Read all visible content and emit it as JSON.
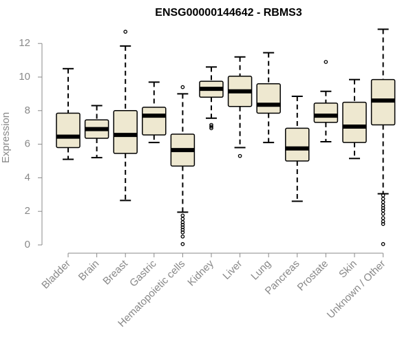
{
  "chart_data": {
    "type": "boxplot",
    "title": "ENSG00000144642 - RBMS3",
    "xlabel": "",
    "ylabel": "Expression",
    "ylim": [
      0,
      12.8
    ],
    "yticks": [
      0,
      2,
      4,
      6,
      8,
      10,
      12
    ],
    "colors": {
      "box_fill": "#EEE8D0",
      "box_stroke": "#000000",
      "axis": "#888888"
    },
    "categories": [
      "Bladder",
      "Brain",
      "Breast",
      "Gastric",
      "Hematopoietic cells",
      "Kidney",
      "Liver",
      "Lung",
      "Pancreas",
      "Prostate",
      "Skin",
      "Unknown / Other"
    ],
    "boxes": [
      {
        "name": "Bladder",
        "whisker_low": 5.1,
        "q1": 5.8,
        "median": 6.45,
        "q3": 7.85,
        "whisker_high": 10.5,
        "outliers": []
      },
      {
        "name": "Brain",
        "whisker_low": 5.2,
        "q1": 6.35,
        "median": 6.9,
        "q3": 7.45,
        "whisker_high": 8.3,
        "outliers": []
      },
      {
        "name": "Breast",
        "whisker_low": 2.65,
        "q1": 5.45,
        "median": 6.55,
        "q3": 8.0,
        "whisker_high": 11.85,
        "outliers": [
          12.7
        ]
      },
      {
        "name": "Gastric",
        "whisker_low": 6.1,
        "q1": 6.55,
        "median": 7.7,
        "q3": 8.2,
        "whisker_high": 9.7,
        "outliers": []
      },
      {
        "name": "Hematopoietic cells",
        "whisker_low": 1.95,
        "q1": 4.7,
        "median": 5.65,
        "q3": 6.6,
        "whisker_high": 9.0,
        "outliers": [
          9.4,
          1.75,
          1.55,
          1.35,
          1.2,
          1.05,
          0.9,
          0.75,
          0.5,
          0.05
        ]
      },
      {
        "name": "Kidney",
        "whisker_low": 7.55,
        "q1": 8.8,
        "median": 9.3,
        "q3": 9.75,
        "whisker_high": 10.6,
        "outliers": [
          7.15,
          7.05,
          6.95
        ]
      },
      {
        "name": "Liver",
        "whisker_low": 5.8,
        "q1": 8.25,
        "median": 9.15,
        "q3": 10.05,
        "whisker_high": 11.2,
        "outliers": [
          5.3
        ]
      },
      {
        "name": "Lung",
        "whisker_low": 6.1,
        "q1": 7.85,
        "median": 8.35,
        "q3": 9.6,
        "whisker_high": 11.45,
        "outliers": []
      },
      {
        "name": "Pancreas",
        "whisker_low": 2.6,
        "q1": 5.0,
        "median": 5.75,
        "q3": 6.95,
        "whisker_high": 8.85,
        "outliers": []
      },
      {
        "name": "Prostate",
        "whisker_low": 6.15,
        "q1": 7.3,
        "median": 7.7,
        "q3": 8.45,
        "whisker_high": 9.15,
        "outliers": [
          10.9
        ]
      },
      {
        "name": "Skin",
        "whisker_low": 5.15,
        "q1": 6.1,
        "median": 7.05,
        "q3": 8.5,
        "whisker_high": 9.85,
        "outliers": []
      },
      {
        "name": "Unknown / Other",
        "whisker_low": 3.05,
        "q1": 7.15,
        "median": 8.6,
        "q3": 9.85,
        "whisker_high": 12.85,
        "outliers": [
          2.95,
          2.75,
          2.55,
          2.35,
          2.2,
          2.05,
          1.85,
          1.6,
          1.4,
          1.25,
          0.05
        ]
      }
    ]
  }
}
